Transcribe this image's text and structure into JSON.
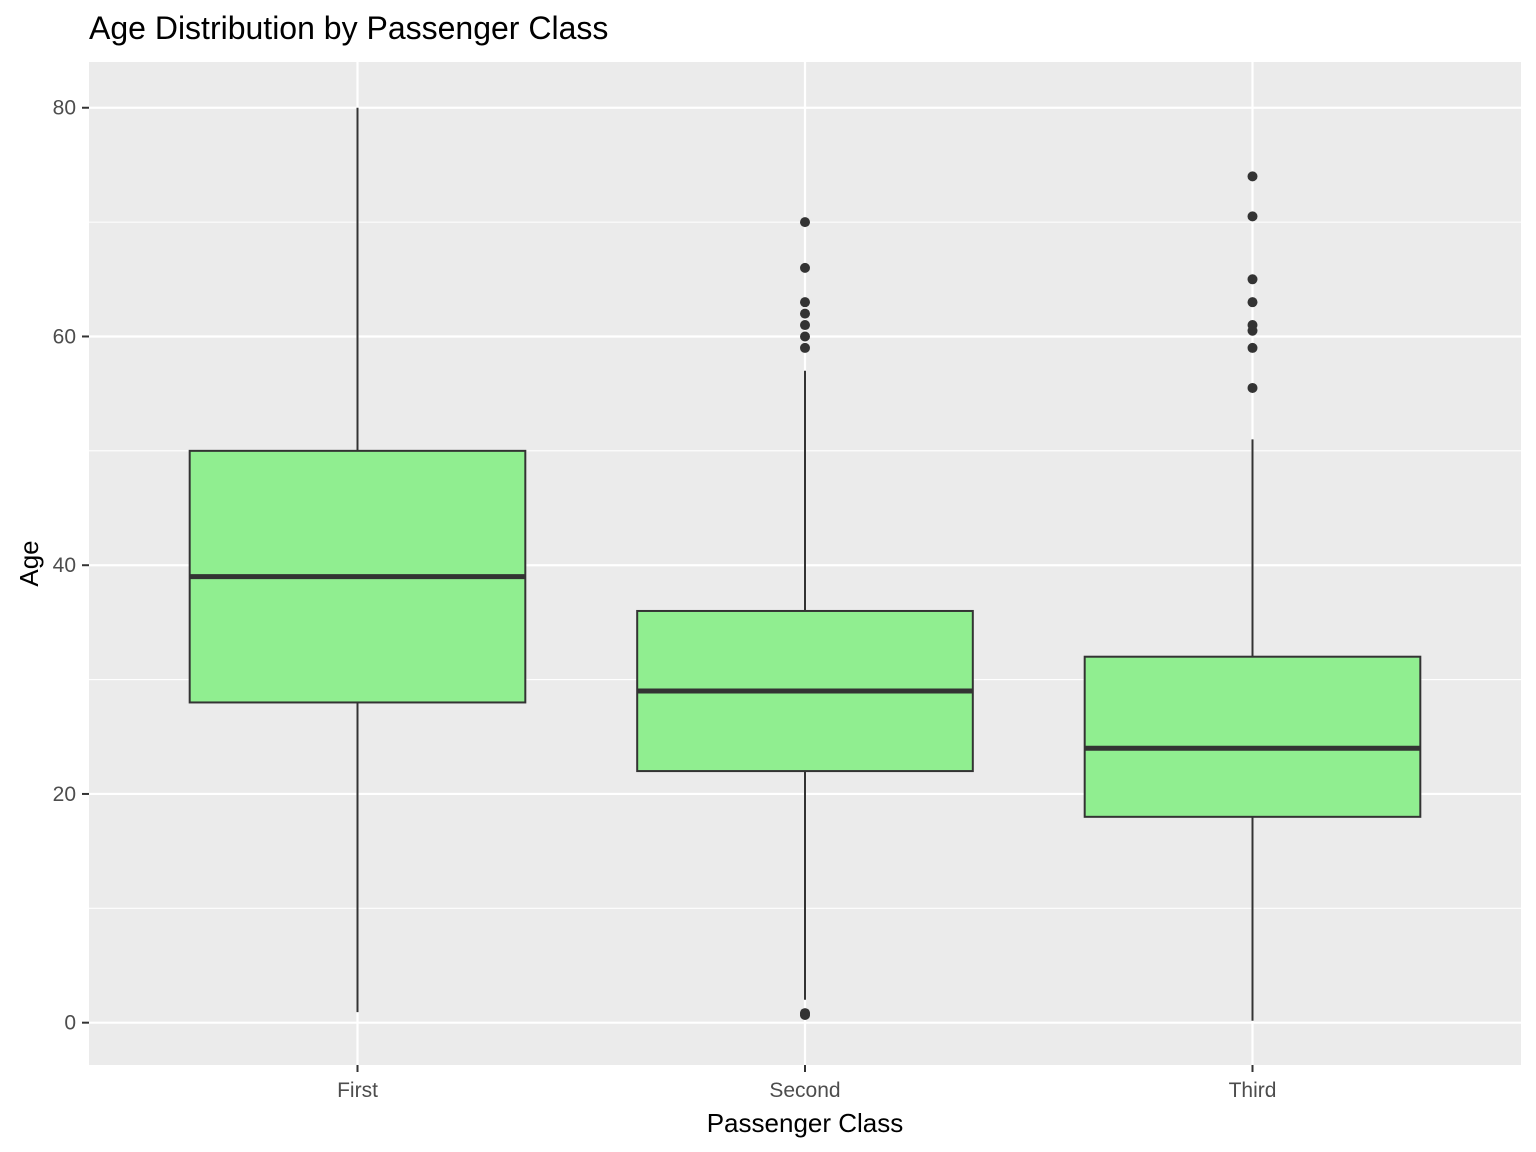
{
  "chart_data": {
    "type": "box",
    "title": "Age Distribution by Passenger Class",
    "xlabel": "Passenger Class",
    "ylabel": "Age",
    "ylim": [
      -3.7,
      84
    ],
    "yticks": [
      0,
      20,
      40,
      60,
      80
    ],
    "grid": true,
    "legend": "none",
    "colors": {
      "panel": "#ebebeb",
      "grid": "#ffffff",
      "box_fill": "#90ee90",
      "box_line": "#333333",
      "tick_text": "#4d4d4d"
    },
    "categories": [
      "First",
      "Second",
      "Third"
    ],
    "boxes": [
      {
        "category": "First",
        "min": 0.92,
        "q1": 28,
        "median": 39,
        "q3": 50,
        "max": 80,
        "outliers": []
      },
      {
        "category": "Second",
        "min": 2,
        "q1": 22,
        "median": 29,
        "q3": 36,
        "max": 57,
        "outliers": [
          0.67,
          0.83,
          0.83,
          59,
          60,
          61,
          62,
          63,
          66,
          70
        ]
      },
      {
        "category": "Third",
        "min": 0.17,
        "q1": 18,
        "median": 24,
        "q3": 32,
        "max": 51,
        "outliers": [
          55.5,
          59,
          60.5,
          61,
          63,
          65,
          70.5,
          74
        ]
      }
    ]
  }
}
